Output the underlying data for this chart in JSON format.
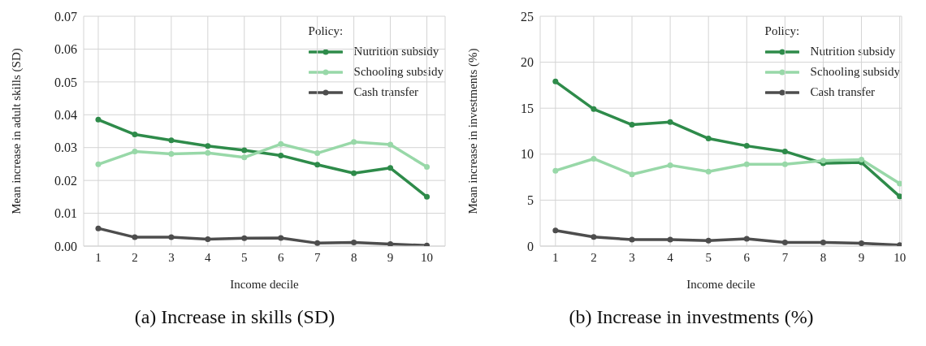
{
  "chart_data": [
    {
      "type": "line",
      "xlabel": "Income decile",
      "ylabel": "Mean increase in adult skills (SD)",
      "legend_title": "Policy:",
      "legend": "top right",
      "grid": true,
      "marker": "circle",
      "line_style": "solid",
      "x": [
        1,
        2,
        3,
        4,
        5,
        6,
        7,
        8,
        9,
        10
      ],
      "xlim": [
        0.6,
        10.5
      ],
      "xticks": [
        1,
        2,
        3,
        4,
        5,
        6,
        7,
        8,
        9,
        10
      ],
      "ylim": [
        0,
        0.07
      ],
      "yticks": [
        {
          "value": 0,
          "label": "0.00"
        },
        {
          "value": 0.01,
          "label": "0.01"
        },
        {
          "value": 0.02,
          "label": "0.02"
        },
        {
          "value": 0.03,
          "label": "0.03"
        },
        {
          "value": 0.04,
          "label": "0.04"
        },
        {
          "value": 0.05,
          "label": "0.05"
        },
        {
          "value": 0.06,
          "label": "0.06"
        },
        {
          "value": 0.07,
          "label": "0.07"
        }
      ],
      "series": [
        {
          "name": "Nutrition subsidy",
          "color": "#2e8b4a",
          "values": [
            0.0385,
            0.034,
            0.0322,
            0.0305,
            0.0292,
            0.0276,
            0.0248,
            0.0222,
            0.0238,
            0.015
          ]
        },
        {
          "name": "Schooling subsidy",
          "color": "#98d8a8",
          "values": [
            0.0249,
            0.0288,
            0.0281,
            0.0284,
            0.027,
            0.0311,
            0.0283,
            0.0317,
            0.0309,
            0.0241
          ]
        },
        {
          "name": "Cash transfer",
          "color": "#4d4d4d",
          "values": [
            0.0054,
            0.0027,
            0.0027,
            0.0021,
            0.0024,
            0.0025,
            0.0009,
            0.0011,
            0.0006,
            0.0002
          ]
        }
      ],
      "annotations": [
        "(a) Increase in skills (SD)"
      ]
    },
    {
      "type": "line",
      "xlabel": "Income decile",
      "ylabel": "Mean increase in investments (%)",
      "legend_title": "Policy:",
      "legend": "top right",
      "grid": true,
      "marker": "circle",
      "line_style": "solid",
      "x": [
        1,
        2,
        3,
        4,
        5,
        6,
        7,
        8,
        9,
        10
      ],
      "xlim": [
        0.6,
        10.05
      ],
      "xticks": [
        1,
        2,
        3,
        4,
        5,
        6,
        7,
        8,
        9,
        10
      ],
      "ylim": [
        0,
        25
      ],
      "yticks": [
        0,
        5,
        10,
        15,
        20,
        25
      ],
      "series": [
        {
          "name": "Nutrition subsidy",
          "color": "#2e8b4a",
          "values": [
            17.9,
            14.9,
            13.2,
            13.5,
            11.7,
            10.9,
            10.3,
            9.0,
            9.1,
            5.4
          ]
        },
        {
          "name": "Schooling subsidy",
          "color": "#98d8a8",
          "values": [
            8.2,
            9.5,
            7.8,
            8.8,
            8.1,
            8.9,
            8.9,
            9.3,
            9.4,
            6.8
          ]
        },
        {
          "name": "Cash transfer",
          "color": "#4d4d4d",
          "values": [
            1.7,
            1.0,
            0.7,
            0.7,
            0.6,
            0.8,
            0.4,
            0.4,
            0.3,
            0.1
          ]
        }
      ],
      "annotations": [
        "(b) Increase in investments (%)"
      ]
    }
  ]
}
